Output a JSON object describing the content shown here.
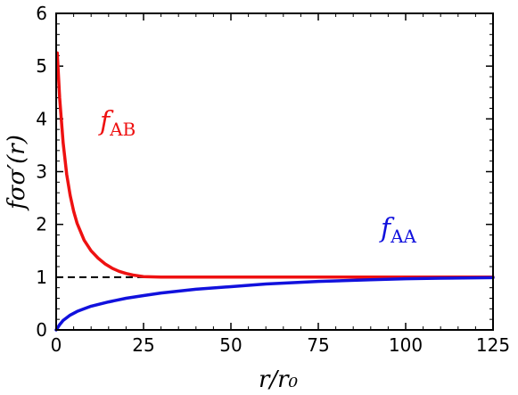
{
  "chart_data": {
    "type": "line",
    "xlabel": "r/r₀",
    "ylabel": "fσσ′(r)",
    "xlim": [
      0,
      125
    ],
    "ylim": [
      0,
      6
    ],
    "xticks": [
      0,
      25,
      50,
      75,
      100,
      125
    ],
    "yticks": [
      0,
      1,
      2,
      3,
      4,
      5,
      6
    ],
    "xtick_labels": [
      "0",
      "25",
      "50",
      "75",
      "100",
      "125"
    ],
    "ytick_labels": [
      "0",
      "1",
      "2",
      "3",
      "4",
      "5",
      "6"
    ],
    "grid": false,
    "reference_line": {
      "y": 1,
      "style": "dashed",
      "color": "#000000"
    },
    "series": [
      {
        "name": "f_AB",
        "color": "#ee1111",
        "x": [
          0.3,
          1,
          2,
          3,
          4,
          5,
          6,
          8,
          10,
          12,
          14,
          16,
          18,
          20,
          22,
          25,
          30,
          40,
          50,
          75,
          100,
          125
        ],
        "y": [
          5.25,
          4.4,
          3.55,
          2.95,
          2.55,
          2.25,
          2.02,
          1.7,
          1.5,
          1.36,
          1.25,
          1.17,
          1.11,
          1.07,
          1.04,
          1.01,
          1.0,
          1.0,
          1.0,
          1.0,
          1.0,
          1.0
        ]
      },
      {
        "name": "f_AA",
        "color": "#1111dd",
        "x": [
          0,
          1,
          2,
          4,
          6,
          8,
          10,
          15,
          20,
          25,
          30,
          40,
          50,
          60,
          75,
          90,
          100,
          110,
          125
        ],
        "y": [
          0.0,
          0.1,
          0.18,
          0.28,
          0.35,
          0.4,
          0.45,
          0.53,
          0.6,
          0.65,
          0.7,
          0.77,
          0.82,
          0.87,
          0.92,
          0.95,
          0.97,
          0.98,
          0.99
        ]
      }
    ],
    "annotations": [
      {
        "main": "f",
        "sub": "AB",
        "color": "#ee1111"
      },
      {
        "main": "f",
        "sub": "AA",
        "color": "#1111dd"
      }
    ]
  }
}
